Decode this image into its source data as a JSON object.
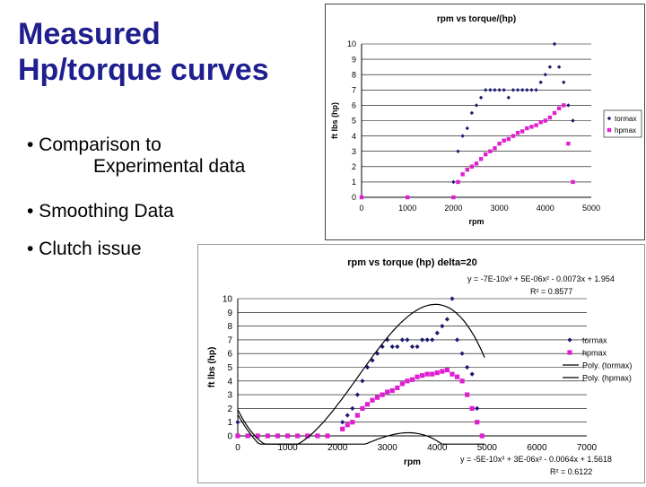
{
  "slide": {
    "title_line1": "Measured",
    "title_line2": "Hp/torque curves",
    "bullet1_line1": "• Comparison to",
    "bullet1_line2": "Experimental data",
    "bullet2": "• Smoothing Data",
    "bullet3": "• Clutch issue",
    "title_color": "#1f1f8f"
  },
  "chart_data": [
    {
      "type": "scatter",
      "title": "rpm vs torque/(hp)",
      "xlabel": "rpm",
      "ylabel": "ft lbs (hp)",
      "xlim": [
        0,
        5000
      ],
      "ylim": [
        0,
        10
      ],
      "xticks": [
        0,
        1000,
        2000,
        3000,
        4000,
        5000
      ],
      "yticks": [
        0,
        1,
        2,
        3,
        4,
        5,
        6,
        7,
        8,
        9,
        10
      ],
      "grid": true,
      "legend_position": "right",
      "series": [
        {
          "name": "tormax",
          "color": "#1a1a6e",
          "marker": "diamond",
          "x": [
            2000,
            2100,
            2200,
            2300,
            2400,
            2500,
            2600,
            2700,
            2800,
            2900,
            3000,
            3100,
            3200,
            3300,
            3400,
            3500,
            3600,
            3700,
            3800,
            3900,
            4000,
            4100,
            4200,
            4300,
            4400,
            4500,
            4600
          ],
          "y": [
            1.0,
            3.0,
            4.0,
            4.5,
            5.5,
            6.0,
            6.5,
            7.0,
            7.0,
            7.0,
            7.0,
            7.0,
            6.5,
            7.0,
            7.0,
            7.0,
            7.0,
            7.0,
            7.0,
            7.5,
            8.0,
            8.5,
            10.0,
            8.5,
            7.5,
            6.0,
            5.0
          ]
        },
        {
          "name": "hpmax",
          "color": "#e020d0",
          "marker": "square",
          "x": [
            0,
            1000,
            2000,
            2100,
            2200,
            2300,
            2400,
            2500,
            2600,
            2700,
            2800,
            2900,
            3000,
            3100,
            3200,
            3300,
            3400,
            3500,
            3600,
            3700,
            3800,
            3900,
            4000,
            4100,
            4200,
            4300,
            4400,
            4500,
            4600
          ],
          "y": [
            0,
            0,
            0,
            1.0,
            1.5,
            1.8,
            2.0,
            2.2,
            2.5,
            2.8,
            3.0,
            3.2,
            3.5,
            3.7,
            3.8,
            4.0,
            4.2,
            4.3,
            4.5,
            4.6,
            4.7,
            4.9,
            5.0,
            5.2,
            5.5,
            5.8,
            6.0,
            3.5,
            1.0
          ]
        }
      ]
    },
    {
      "type": "scatter",
      "title": "rpm vs torque (hp) delta=20",
      "xlabel": "rpm",
      "ylabel": "ft lbs (hp)",
      "xlim": [
        0,
        7000
      ],
      "ylim": [
        0,
        10
      ],
      "xticks": [
        0,
        1000,
        2000,
        3000,
        4000,
        5000,
        6000,
        7000
      ],
      "xtick_labels": [
        "0",
        "1000",
        "2000",
        "3000",
        "4000",
        "5000",
        "6000",
        "7000"
      ],
      "yticks": [
        0,
        1,
        2,
        3,
        4,
        5,
        6,
        7,
        8,
        9,
        10
      ],
      "grid": true,
      "legend_position": "right",
      "legend": [
        "tormax",
        "hpmax",
        "Poly. (tormax)",
        "Poly. (hpmax)"
      ],
      "trendline_top": "y = -7E-10x³ + 5E-06x² - 0.0073x + 1.954",
      "r2_top": "R² = 0.8577",
      "trendline_bottom": "y = -5E-10x³ + 3E-06x² - 0.0064x + 1.5618",
      "r2_bottom": "R² = 0.6122",
      "series": [
        {
          "name": "tormax",
          "color": "#1a1a6e",
          "marker": "diamond",
          "x": [
            0,
            200,
            400,
            600,
            800,
            1000,
            1200,
            1400,
            1600,
            1800,
            2100,
            2200,
            2300,
            2400,
            2500,
            2600,
            2700,
            2800,
            2900,
            3000,
            3100,
            3200,
            3300,
            3400,
            3500,
            3600,
            3700,
            3800,
            3900,
            4000,
            4100,
            4200,
            4300,
            4400,
            4500,
            4600,
            4700,
            4800,
            4900
          ],
          "y": [
            1.0,
            0,
            0,
            0,
            0,
            0,
            0,
            0,
            0,
            0,
            1.0,
            1.5,
            2.0,
            3.0,
            4.0,
            5.0,
            5.5,
            6.0,
            6.5,
            7.0,
            6.5,
            6.5,
            7.0,
            7.0,
            6.5,
            6.5,
            7.0,
            7.0,
            7.0,
            7.5,
            8.0,
            8.5,
            10.0,
            7.0,
            6.0,
            5.0,
            4.5,
            2.0,
            0
          ]
        },
        {
          "name": "hpmax",
          "color": "#e020d0",
          "marker": "square",
          "x": [
            0,
            200,
            400,
            600,
            800,
            1000,
            1200,
            1400,
            1600,
            1800,
            2100,
            2200,
            2300,
            2400,
            2500,
            2600,
            2700,
            2800,
            2900,
            3000,
            3100,
            3200,
            3300,
            3400,
            3500,
            3600,
            3700,
            3800,
            3900,
            4000,
            4100,
            4200,
            4300,
            4400,
            4500,
            4600,
            4700,
            4800,
            4900
          ],
          "y": [
            0,
            0,
            0,
            0,
            0,
            0,
            0,
            0,
            0,
            0,
            0.5,
            0.8,
            1.0,
            1.5,
            2.0,
            2.3,
            2.6,
            2.8,
            3.0,
            3.2,
            3.3,
            3.5,
            3.8,
            4.0,
            4.1,
            4.3,
            4.4,
            4.5,
            4.5,
            4.6,
            4.7,
            4.8,
            4.5,
            4.3,
            4.0,
            3.0,
            2.0,
            1.0,
            0
          ]
        }
      ]
    }
  ]
}
